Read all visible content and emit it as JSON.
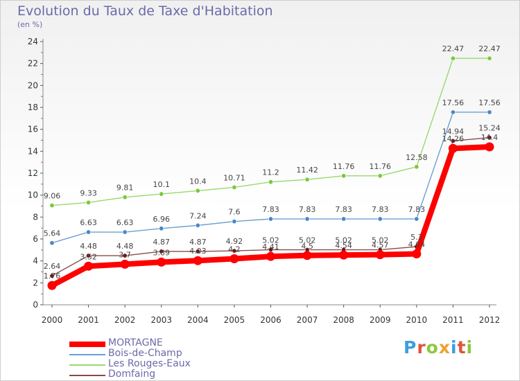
{
  "title": "Evolution du Taux de Taxe d'Habitation",
  "subtitle": "(en %)",
  "logo": {
    "text": "Proxiti",
    "colors": [
      "#3aa0e0",
      "#e0543a",
      "#8cc83c",
      "#f0a030",
      "#3aa0e0",
      "#e0543a",
      "#8cc83c"
    ]
  },
  "chart_data": {
    "type": "line",
    "title": "Evolution du Taux de Taxe d'Habitation",
    "ylabel": "(en %)",
    "xlabel": "",
    "categories": [
      "2000",
      "2001",
      "2002",
      "2003",
      "2004",
      "2005",
      "2006",
      "2007",
      "2008",
      "2009",
      "2010",
      "2011",
      "2012"
    ],
    "ylim": [
      0,
      24
    ],
    "yticks": [
      0,
      2,
      4,
      6,
      8,
      10,
      12,
      14,
      16,
      18,
      20,
      22,
      24
    ],
    "grid": false,
    "legend": "bottom-left",
    "series": [
      {
        "name": "MORTAGNE",
        "color": "#ff0000",
        "style": "thick",
        "values": [
          1.76,
          3.52,
          3.7,
          3.89,
          4.03,
          4.2,
          4.41,
          4.5,
          4.54,
          4.57,
          4.64,
          14.26,
          14.4
        ],
        "labels": [
          "1.76",
          "3.52",
          "3.7",
          "3.89",
          "4.03",
          "4.2",
          "4.41",
          "4.5",
          "4.54",
          "4.57",
          "4.64",
          "14.26",
          "14.4"
        ]
      },
      {
        "name": "Bois-de-Champ",
        "color": "#6a9fd0",
        "point_color": "#4a88c8",
        "style": "thin",
        "values": [
          5.64,
          6.63,
          6.63,
          6.96,
          7.24,
          7.6,
          7.83,
          7.83,
          7.83,
          7.83,
          7.83,
          17.56,
          17.56
        ],
        "labels": [
          "5.64",
          "6.63",
          "6.63",
          "6.96",
          "7.24",
          "7.6",
          "7.83",
          "7.83",
          "7.83",
          "7.83",
          "7.83",
          "17.56",
          "17.56"
        ]
      },
      {
        "name": "Les Rouges-Eaux",
        "color": "#9ad86a",
        "point_color": "#7cc83c",
        "style": "thin",
        "values": [
          9.06,
          9.33,
          9.81,
          10.1,
          10.4,
          10.71,
          11.2,
          11.42,
          11.76,
          11.76,
          12.58,
          22.47,
          22.47
        ],
        "labels": [
          "9.06",
          "9.33",
          "9.81",
          "10.1",
          "10.4",
          "10.71",
          "11.2",
          "11.42",
          "11.76",
          "11.76",
          "12.58",
          "22.47",
          "22.47"
        ]
      },
      {
        "name": "Domfaing",
        "color": "#8a4a4a",
        "point_color": "#6a1a1a",
        "style": "thin",
        "values": [
          2.64,
          4.48,
          4.48,
          4.87,
          4.87,
          4.92,
          5.02,
          5.02,
          5.02,
          5.02,
          5.3,
          14.94,
          15.24
        ],
        "labels": [
          "2.64",
          "4.48",
          "4.48",
          "4.87",
          "4.87",
          "4.92",
          "5.02",
          "5.02",
          "5.02",
          "5.02",
          "5.3",
          "14.94",
          "15.24"
        ]
      }
    ]
  }
}
